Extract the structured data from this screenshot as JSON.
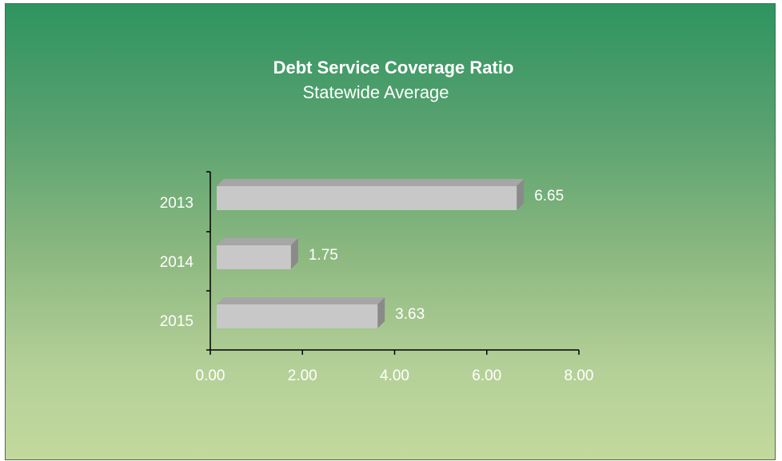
{
  "chart_data": {
    "type": "bar",
    "orientation": "horizontal",
    "title": "Debt Service Coverage Ratio",
    "subtitle": "Statewide Average",
    "categories": [
      "2013",
      "2014",
      "2015"
    ],
    "values": [
      6.65,
      1.75,
      3.63
    ],
    "value_labels": [
      "6.65",
      "1.75",
      "3.63"
    ],
    "xlim": [
      0,
      8
    ],
    "x_ticks": [
      "0.00",
      "2.00",
      "4.00",
      "6.00",
      "8.00"
    ],
    "grid": false,
    "legend": "none",
    "bar_style": "3d"
  },
  "colors": {
    "bar_front": "#c8c8c8",
    "bar_top": "#a6a6a6",
    "bar_side": "#8a8a8a",
    "axis": "#000000",
    "text": "#ffffff",
    "background_top": "#2e9460",
    "background_bottom": "#c3d99c"
  }
}
